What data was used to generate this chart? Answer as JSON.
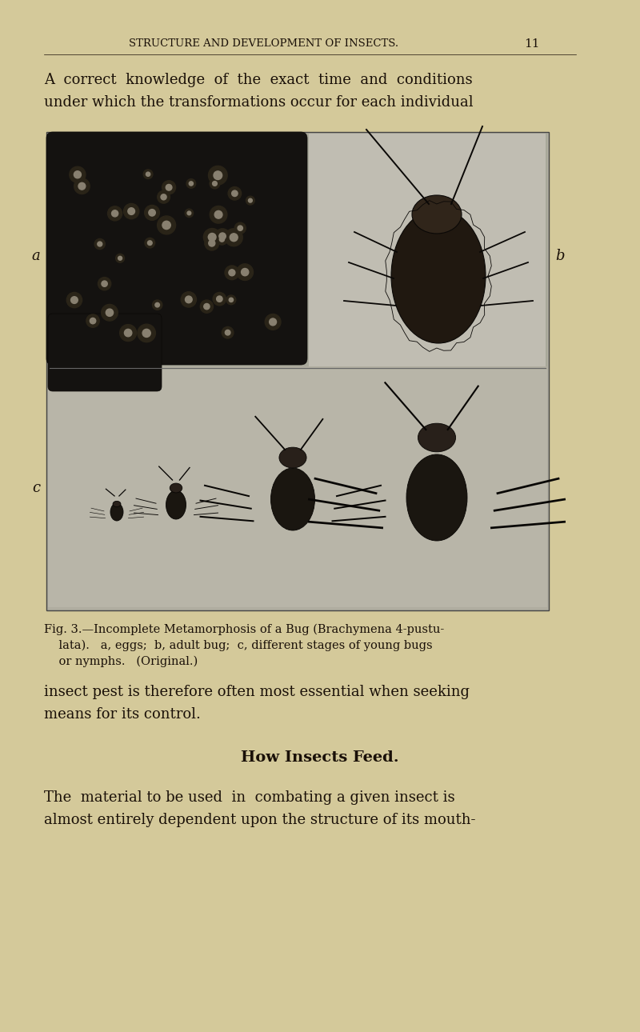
{
  "bg_color": "#d4c99a",
  "header_text": "STRUCTURE AND DEVELOPMENT OF INSECTS.",
  "page_number": "11",
  "para1_line1": "A  correct  knowledge  of  the  exact  time  and  conditions",
  "para1_line2": "under which the transformations occur for each individual",
  "caption_line1": "Fig. 3.—Incomplete Metamorphosis of a Bug (Brachymena 4-pustu-",
  "caption_line2": "    lata).   a, eggs;  b, adult bug;  c, different stages of young bugs",
  "caption_line3": "    or nymphs.   (Original.)",
  "body_line1": "insect pest is therefore often most essential when seeking",
  "body_line2": "means for its control.",
  "section_head": "How Insects Feed.",
  "body2_line1": "The  material to be used  in  combating a given insect is",
  "body2_line2": "almost entirely dependent upon the structure of its mouth-",
  "label_a": "a",
  "label_b": "b",
  "label_c": "c",
  "text_color": "#1a1008"
}
